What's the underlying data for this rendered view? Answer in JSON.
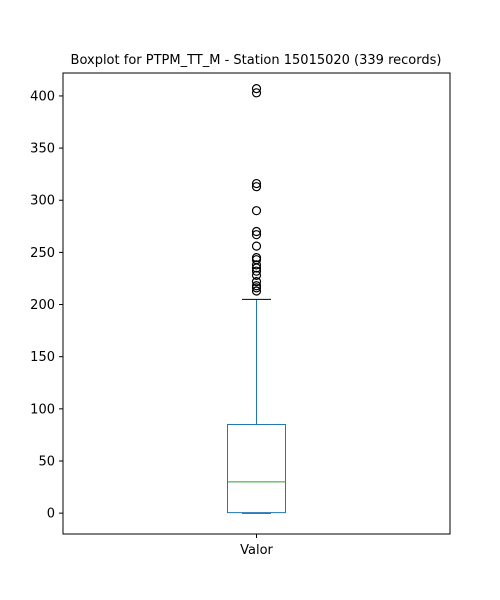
{
  "chart_data": {
    "type": "boxplot",
    "title": "Boxplot for PTPM_TT_M - Station 15015020 (339 records)",
    "xlabel": "",
    "ylabel": "",
    "categories": [
      "Valor"
    ],
    "ylim": [
      -20,
      422
    ],
    "yticks": [
      0,
      50,
      100,
      150,
      200,
      250,
      300,
      350,
      400
    ],
    "box": {
      "whisker_low": 0,
      "q1": 0.5,
      "median": 30,
      "q3": 85,
      "whisker_high": 205
    },
    "outliers": [
      213,
      216,
      218,
      222,
      228,
      232,
      235,
      238,
      243,
      245,
      256,
      267,
      270,
      290,
      313,
      316,
      403,
      407
    ],
    "colors": {
      "box": "#1f77b4",
      "median": "#2ca02c",
      "whisker": "#1f77b4",
      "cap": "#000000",
      "outlier": "#000000"
    },
    "grid": false,
    "legend": "none"
  }
}
